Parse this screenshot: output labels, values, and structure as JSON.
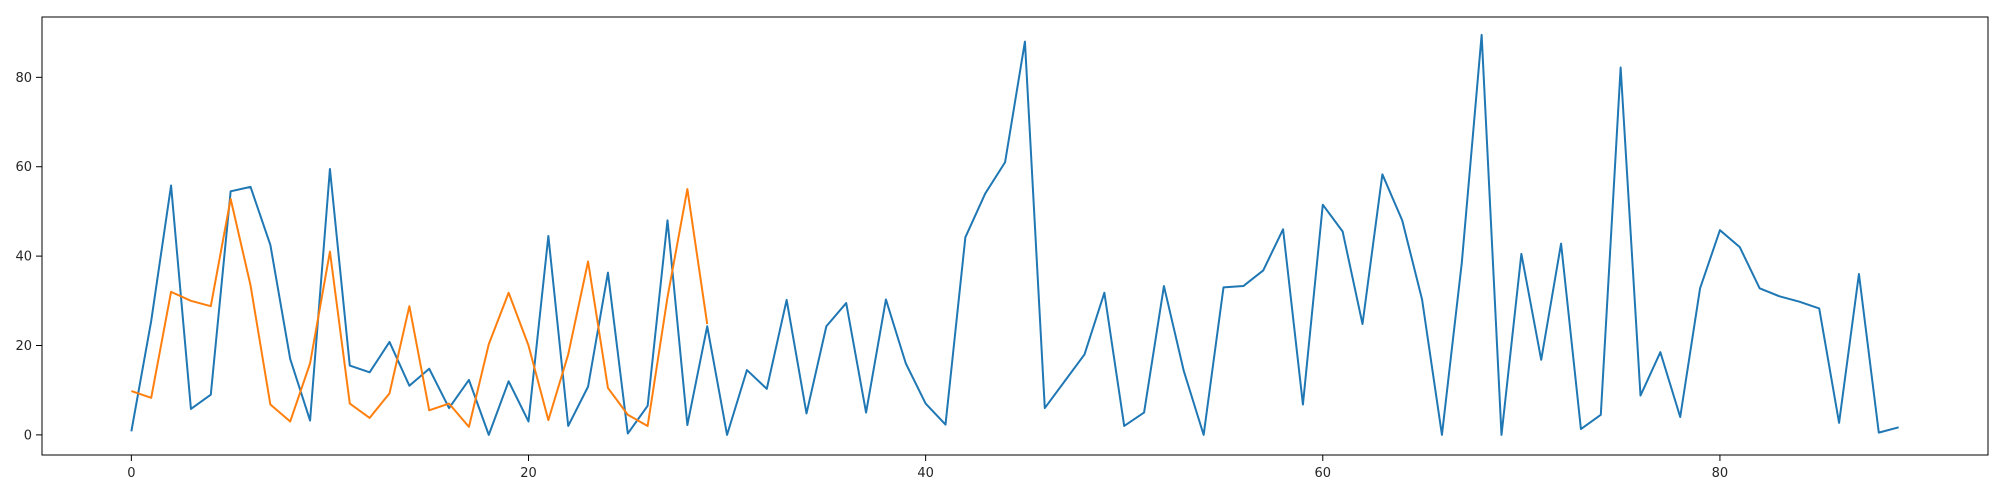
{
  "chart_data": {
    "type": "line",
    "title": "",
    "xlabel": "",
    "ylabel": "",
    "xlim": [
      -4.5,
      93.5
    ],
    "ylim": [
      -4.5,
      93.5
    ],
    "xticks": [
      0,
      20,
      40,
      60,
      80
    ],
    "yticks": [
      0,
      20,
      40,
      60,
      80
    ],
    "grid": false,
    "legend": "none",
    "series": [
      {
        "color": "#1f77b4",
        "x": [
          0,
          1,
          2,
          3,
          4,
          5,
          6,
          7,
          8,
          9,
          10,
          11,
          12,
          13,
          14,
          15,
          16,
          17,
          18,
          19,
          20,
          21,
          22,
          23,
          24,
          25,
          26,
          27,
          28,
          29,
          30,
          31,
          32,
          33,
          34,
          35,
          36,
          37,
          38,
          39,
          40,
          41,
          42,
          43,
          44,
          45,
          46,
          47,
          48,
          49,
          50,
          51,
          52,
          53,
          54,
          55,
          56,
          57,
          58,
          59,
          60,
          61,
          62,
          63,
          64,
          65,
          66,
          67,
          68,
          69,
          70,
          71,
          72,
          73,
          74,
          75,
          76,
          77,
          78,
          79,
          80,
          81,
          82,
          83,
          84,
          85,
          86,
          87,
          88,
          89
        ],
        "y": [
          0.8,
          25.5,
          55.8,
          5.8,
          9.0,
          54.5,
          55.5,
          42.5,
          17.0,
          3.2,
          59.5,
          15.5,
          14.0,
          20.8,
          11.0,
          14.8,
          6.0,
          12.3,
          0.0,
          12.0,
          3.0,
          44.5,
          2.0,
          10.8,
          36.3,
          0.3,
          6.5,
          48.0,
          2.2,
          24.3,
          0.0,
          14.5,
          10.3,
          30.2,
          4.8,
          24.3,
          29.5,
          5.0,
          30.3,
          16.0,
          7.0,
          2.3,
          44.2,
          54.0,
          61.0,
          88.0,
          6.0,
          12.0,
          18.0,
          31.8,
          2.0,
          5.0,
          33.3,
          14.3,
          0.0,
          33.0,
          33.3,
          36.8,
          46.0,
          6.8,
          51.5,
          45.5,
          24.8,
          58.3,
          48.0,
          30.3,
          0.0,
          38.5,
          89.5,
          0.0,
          40.5,
          16.8,
          42.8,
          1.3,
          4.5,
          82.2,
          8.8,
          18.5,
          4.0,
          32.8,
          45.8,
          42.0,
          32.8,
          31.0,
          29.8,
          28.3,
          2.7,
          36.0,
          0.5,
          1.7
        ]
      },
      {
        "color": "#ff7f0e",
        "x": [
          0,
          1,
          2,
          3,
          4,
          5,
          6,
          7,
          8,
          9,
          10,
          11,
          12,
          13,
          14,
          15,
          16,
          17,
          18,
          19,
          20,
          21,
          22,
          23,
          24,
          25,
          26,
          27,
          28,
          29
        ],
        "y": [
          9.8,
          8.3,
          32.0,
          30.0,
          28.8,
          52.8,
          33.5,
          6.8,
          3.0,
          16.0,
          41.0,
          7.0,
          3.8,
          9.3,
          28.8,
          5.5,
          7.0,
          1.8,
          20.3,
          31.8,
          20.0,
          3.3,
          18.0,
          38.8,
          10.5,
          4.5,
          2.0,
          30.8,
          55.0,
          24.8
        ]
      }
    ]
  }
}
